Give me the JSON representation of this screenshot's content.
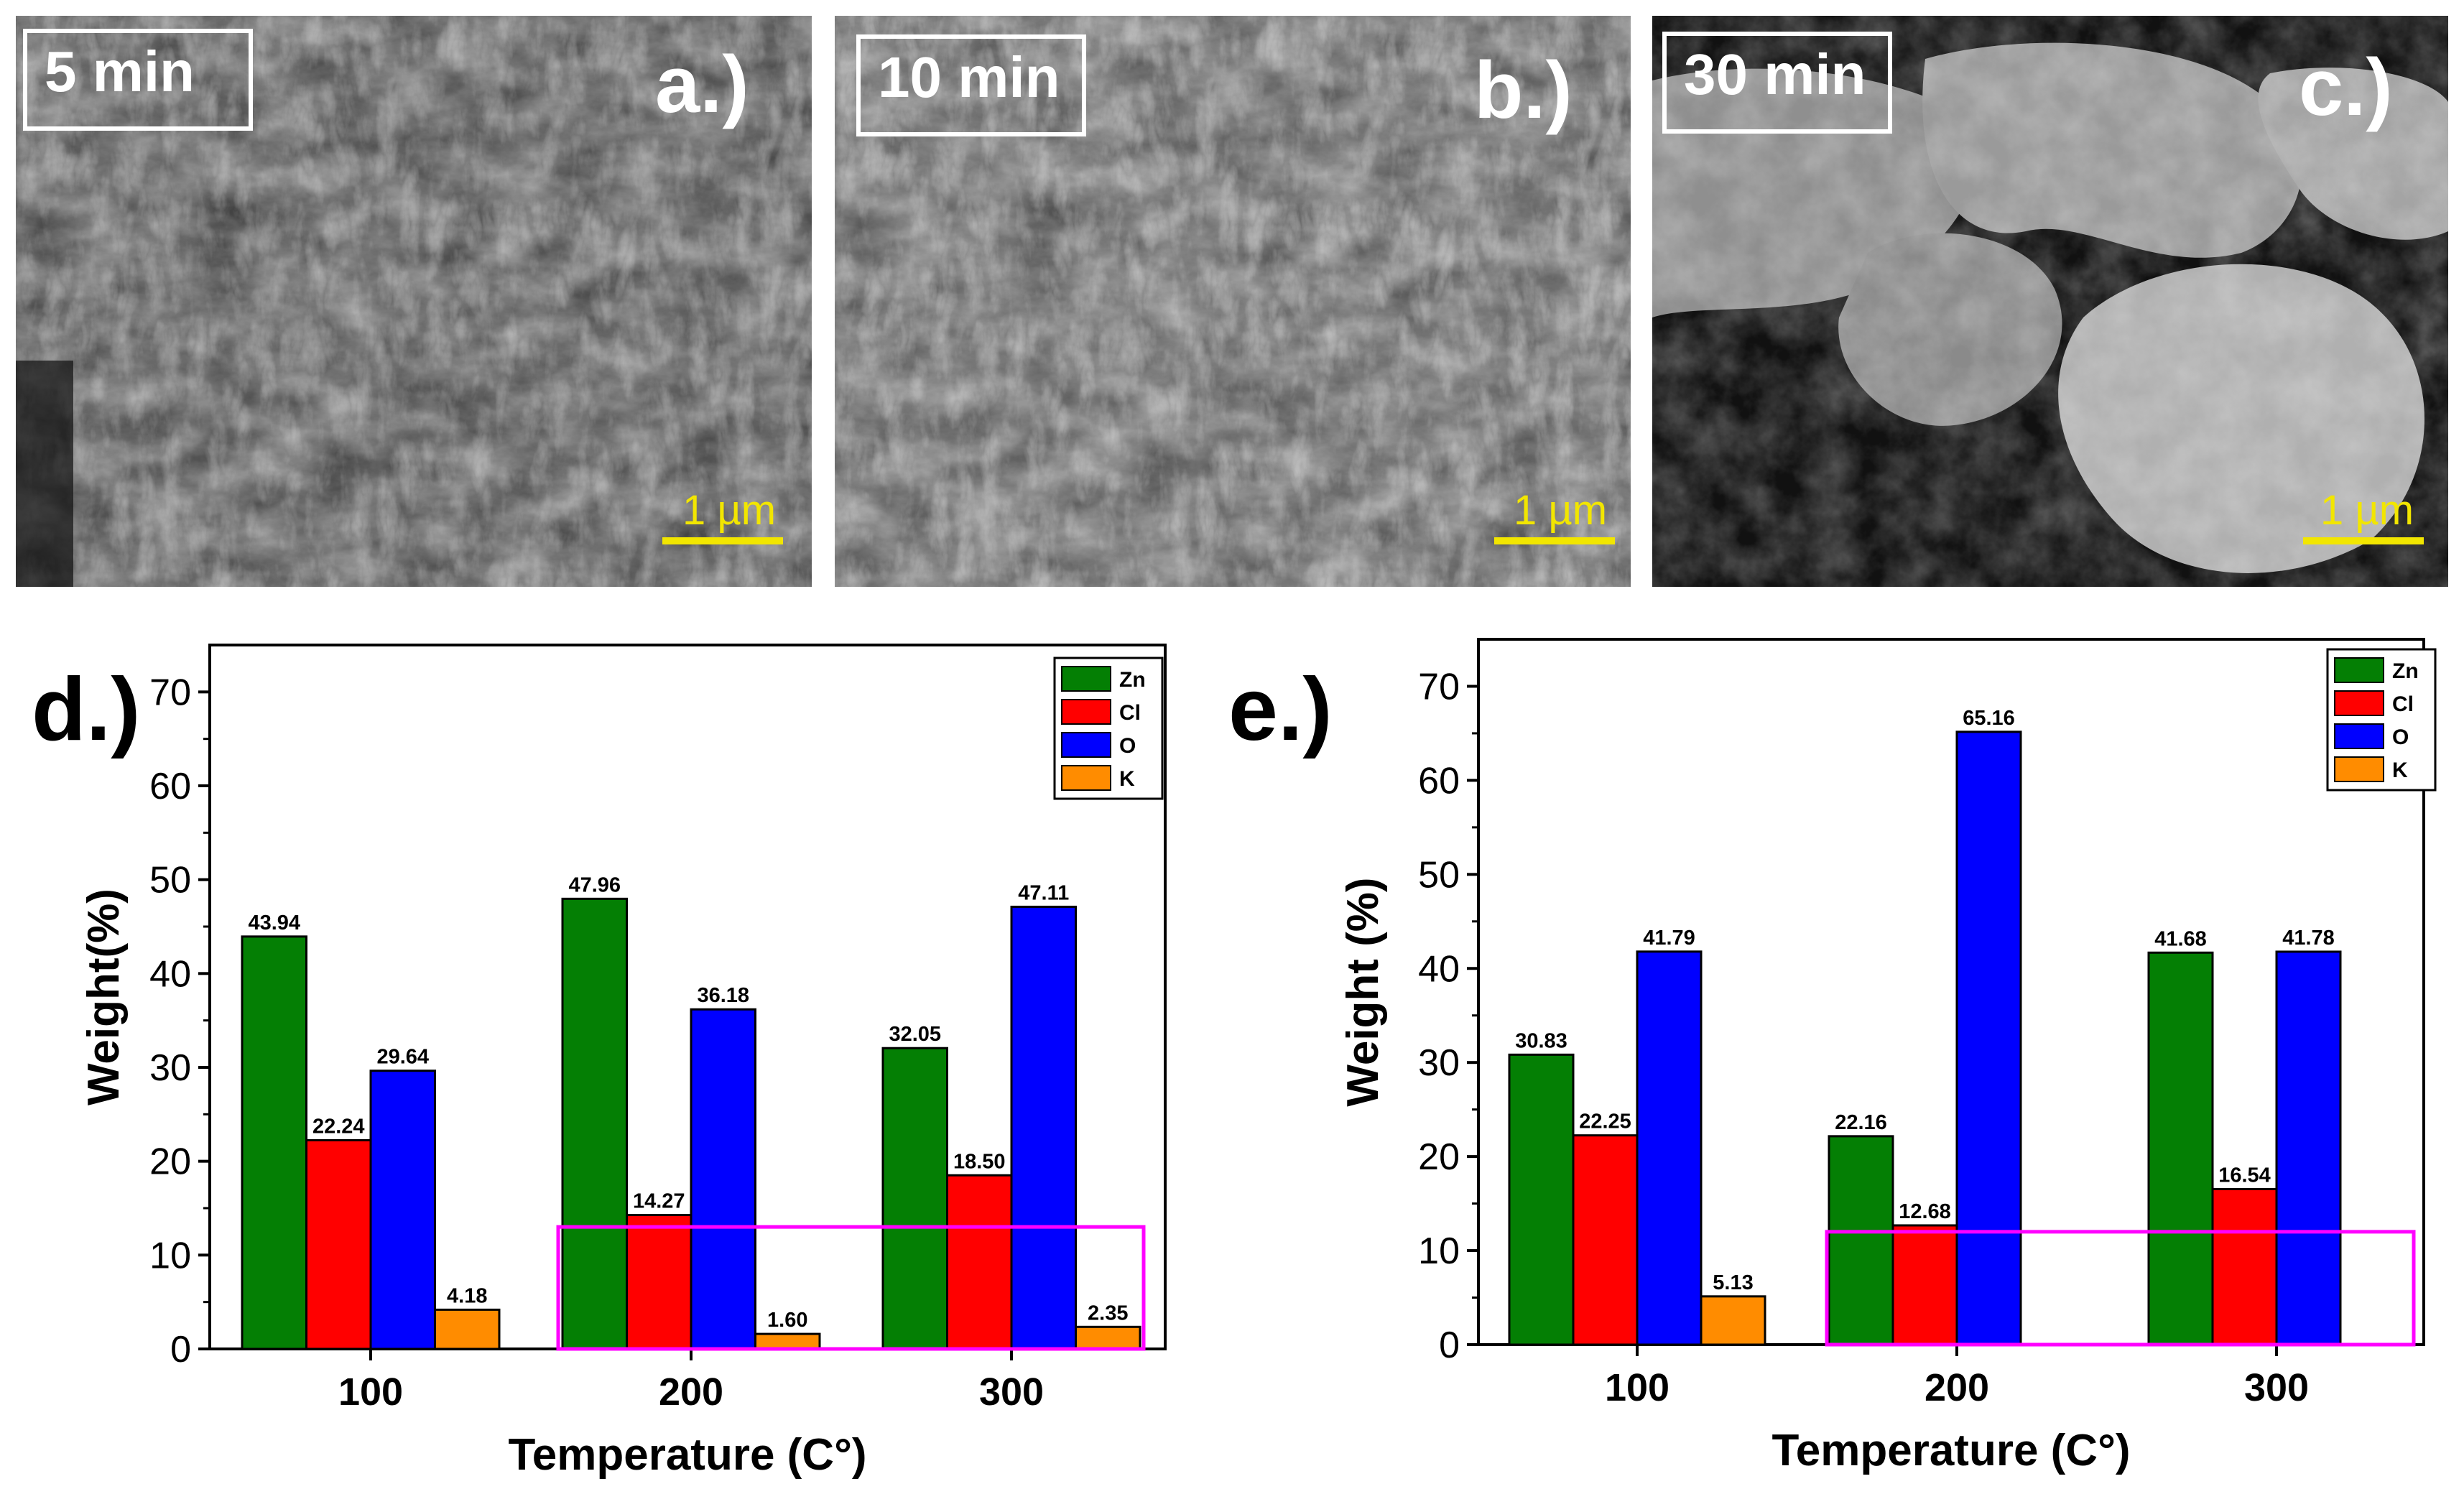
{
  "panels": [
    {
      "time_label": "5 min",
      "letter": "a.)",
      "scale": "1 µm"
    },
    {
      "time_label": "10 min",
      "letter": "b.)",
      "scale": "1 µm"
    },
    {
      "time_label": "30 min",
      "letter": "c.)",
      "scale": "1 µm"
    }
  ],
  "colors": {
    "Zn": "#047f04",
    "Cl": "#ff0000",
    "O": "#0000ff",
    "K": "#ff8c00",
    "highlight": "#ff00ff",
    "scale": "#f2e600"
  },
  "chart_data": [
    {
      "panel_letter": "d.)",
      "type": "bar",
      "categories": [
        "100",
        "200",
        "300"
      ],
      "series": [
        {
          "name": "Zn",
          "values": [
            43.94,
            47.96,
            32.05
          ],
          "labels": [
            "43.94",
            "47.96",
            "32.05"
          ]
        },
        {
          "name": "Cl",
          "values": [
            22.24,
            14.27,
            18.5
          ],
          "labels": [
            "22.24",
            "14.27",
            "18.50"
          ]
        },
        {
          "name": "O",
          "values": [
            29.64,
            36.18,
            47.11
          ],
          "labels": [
            "29.64",
            "36.18",
            "47.11"
          ]
        },
        {
          "name": "K",
          "values": [
            4.18,
            1.6,
            2.35
          ],
          "labels": [
            "4.18",
            "1.60",
            "2.35"
          ]
        }
      ],
      "xlabel": "Temperature (C°)",
      "ylabel": "Weight(%)",
      "ylim": [
        0,
        75
      ],
      "yticks": [
        "0",
        "10",
        "20",
        "30",
        "40",
        "50",
        "60",
        "70"
      ],
      "legend": "top-right",
      "grid": false,
      "highlight_ylim": [
        0,
        13
      ]
    },
    {
      "panel_letter": "e.)",
      "type": "bar",
      "categories": [
        "100",
        "200",
        "300"
      ],
      "series": [
        {
          "name": "Zn",
          "values": [
            30.83,
            22.16,
            41.68
          ],
          "labels": [
            "30.83",
            "22.16",
            "41.68"
          ]
        },
        {
          "name": "Cl",
          "values": [
            22.25,
            12.68,
            16.54
          ],
          "labels": [
            "22.25",
            "12.68",
            "16.54"
          ]
        },
        {
          "name": "O",
          "values": [
            41.79,
            65.16,
            41.78
          ],
          "labels": [
            "41.79",
            "65.16",
            "41.78"
          ]
        },
        {
          "name": "K",
          "values": [
            5.13,
            null,
            null
          ],
          "labels": [
            "5.13",
            "",
            ""
          ]
        }
      ],
      "xlabel": "Temperature (C°)",
      "ylabel": "Weight (%)",
      "ylim": [
        0,
        75
      ],
      "yticks": [
        "0",
        "10",
        "20",
        "30",
        "40",
        "50",
        "60",
        "70"
      ],
      "legend": "top-right",
      "grid": false,
      "highlight_ylim": [
        0,
        12
      ]
    }
  ]
}
